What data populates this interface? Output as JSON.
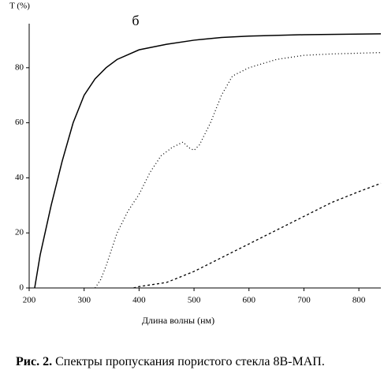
{
  "chart_data": {
    "type": "line",
    "title": "б",
    "ylabel": "T (%)",
    "xlabel": "Длина волны  (нм)",
    "xlim": [
      200,
      840
    ],
    "ylim": [
      0,
      96
    ],
    "xticks": [
      200,
      300,
      400,
      500,
      600,
      700,
      800
    ],
    "yticks": [
      0,
      20,
      40,
      60,
      80
    ],
    "series": [
      {
        "color": "#000000",
        "dash": "solid",
        "x": [
          210,
          220,
          240,
          260,
          280,
          300,
          320,
          340,
          360,
          400,
          450,
          500,
          550,
          600,
          700,
          840
        ],
        "values": [
          0,
          12,
          30,
          46,
          60,
          70,
          76,
          80,
          83,
          86.5,
          88.5,
          90,
          91,
          91.5,
          92,
          92.3
        ]
      },
      {
        "color": "#000000",
        "dash": "dotted",
        "x": [
          320,
          330,
          340,
          360,
          380,
          400,
          420,
          440,
          460,
          480,
          490,
          500,
          510,
          530,
          550,
          570,
          600,
          650,
          700,
          750,
          840
        ],
        "values": [
          0,
          3,
          8,
          20,
          28,
          34,
          42,
          48,
          51,
          53,
          51,
          50,
          52,
          60,
          70,
          77,
          80,
          83,
          84.5,
          85,
          85.5
        ]
      },
      {
        "color": "#000000",
        "dash": "dashed",
        "x": [
          390,
          400,
          450,
          500,
          550,
          600,
          650,
          700,
          750,
          800,
          840
        ],
        "values": [
          0,
          0.5,
          2,
          6,
          11,
          16,
          21,
          26,
          31,
          35,
          38
        ]
      }
    ]
  },
  "caption": {
    "label": "Рис. 2.",
    "text": "Спектры пропускания пористого стекла 8В-МАП."
  }
}
